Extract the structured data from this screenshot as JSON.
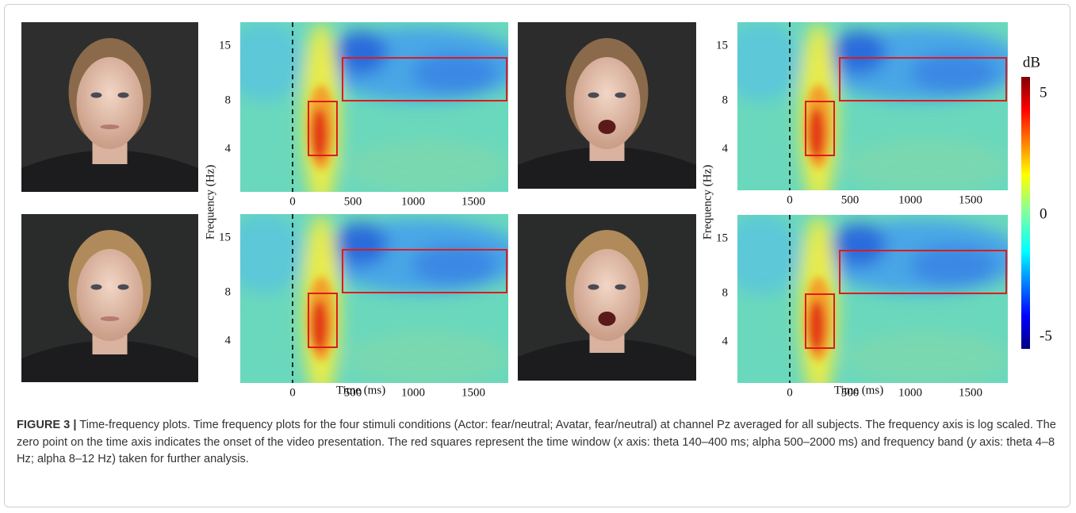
{
  "columns": [
    {
      "y_label": "Frequency (Hz)",
      "x_label": "Time (ms)"
    },
    {
      "y_label": "Frequency (Hz)",
      "x_label": "Time (ms)"
    }
  ],
  "plots": [
    {
      "yticks": [
        "15",
        "8",
        "4"
      ],
      "xticks": [
        "0",
        "500",
        "1000",
        "1500"
      ]
    },
    {
      "yticks": [
        "15",
        "8",
        "4"
      ],
      "xticks": [
        "0",
        "500",
        "1000",
        "1500"
      ]
    },
    {
      "yticks": [
        "15",
        "8",
        "4"
      ],
      "xticks": [
        "0",
        "500",
        "1000",
        "1500"
      ]
    },
    {
      "yticks": [
        "15",
        "8",
        "4"
      ],
      "xticks": [
        "0",
        "500",
        "1000",
        "1500"
      ]
    }
  ],
  "colorbar": {
    "title": "dB",
    "ticks": [
      "5",
      "0",
      "-5"
    ]
  },
  "caption": {
    "label": "FIGURE 3 |",
    "segments": [
      {
        "text": " Time-frequency plots. Time frequency plots for the four stimuli conditions (Actor: fear/neutral; Avatar, fear/neutral) at channel Pz averaged for all subjects. The frequency axis is log scaled. The zero point on the time axis indicates the onset of the video presentation. The red squares represent the time window ("
      },
      {
        "text": "x",
        "italic": true
      },
      {
        "text": " axis: theta 140–400 ms; alpha 500–2000 ms) and frequency band ("
      },
      {
        "text": "y",
        "italic": true
      },
      {
        "text": " axis: theta 4–8 Hz; alpha 8–12 Hz) taken for further analysis."
      }
    ]
  }
}
